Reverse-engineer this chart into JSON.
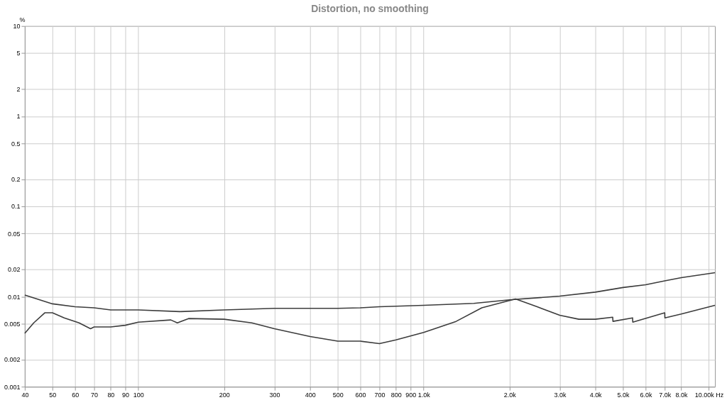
{
  "chart_data": {
    "type": "line",
    "title": "Distortion, no smoothing",
    "ylabel": "%",
    "xlim": [
      40,
      10500
    ],
    "ylim": [
      0.001,
      10
    ],
    "log": "xy",
    "grid": true,
    "legend": false,
    "line_style": "solid",
    "marker": "none",
    "xticks": [
      40,
      50,
      60,
      70,
      80,
      90,
      100,
      200,
      300,
      400,
      500,
      600,
      700,
      800,
      900,
      {
        "value": 1000,
        "label": "1.0k"
      },
      {
        "value": 2000,
        "label": "2.0k"
      },
      {
        "value": 3000,
        "label": "3.0k"
      },
      {
        "value": 4000,
        "label": "4.0k"
      },
      {
        "value": 5000,
        "label": "5.0k"
      },
      {
        "value": 6000,
        "label": "6.0k"
      },
      {
        "value": 7000,
        "label": "7.0k"
      },
      {
        "value": 8000,
        "label": "8.0k"
      },
      {
        "value": 10000,
        "label": "10.00k Hz"
      }
    ],
    "yticks": [
      0.001,
      0.002,
      0.005,
      0.01,
      0.02,
      0.05,
      0.1,
      0.2,
      0.5,
      1,
      2,
      5,
      10
    ],
    "series": [
      {
        "color": "#3c3c3c",
        "x": [
          40,
          50,
          60,
          70,
          80,
          100,
          140,
          200,
          300,
          500,
          600,
          700,
          1000,
          1500,
          2000,
          3000,
          4000,
          5000,
          6000,
          7000,
          8000,
          10500
        ],
        "values": [
          0.0104,
          0.0083,
          0.0077,
          0.0075,
          0.0071,
          0.0071,
          0.0068,
          0.0071,
          0.0074,
          0.0074,
          0.0075,
          0.0077,
          0.008,
          0.0084,
          0.0092,
          0.0101,
          0.0112,
          0.0126,
          0.0135,
          0.0149,
          0.0162,
          0.0184
        ]
      },
      {
        "color": "#3c3c3c",
        "x": [
          40,
          43,
          47,
          50,
          55,
          62,
          68,
          70,
          80,
          90,
          100,
          130,
          137,
          150,
          200,
          250,
          300,
          400,
          500,
          600,
          700,
          800,
          1000,
          1300,
          1600,
          2100,
          2500,
          3000,
          3500,
          4000,
          4600,
          4610,
          5400,
          5410,
          7000,
          7010,
          8000,
          10500
        ],
        "values": [
          0.0039,
          0.0051,
          0.0066,
          0.0066,
          0.0058,
          0.0051,
          0.0044,
          0.0046,
          0.0046,
          0.0048,
          0.0052,
          0.0055,
          0.0051,
          0.0057,
          0.0056,
          0.0051,
          0.0044,
          0.0036,
          0.0032,
          0.0032,
          0.003,
          0.0033,
          0.004,
          0.0053,
          0.0075,
          0.0094,
          0.0077,
          0.0062,
          0.0056,
          0.0056,
          0.0059,
          0.0053,
          0.0058,
          0.0052,
          0.0066,
          0.0058,
          0.0064,
          0.008
        ]
      }
    ]
  }
}
